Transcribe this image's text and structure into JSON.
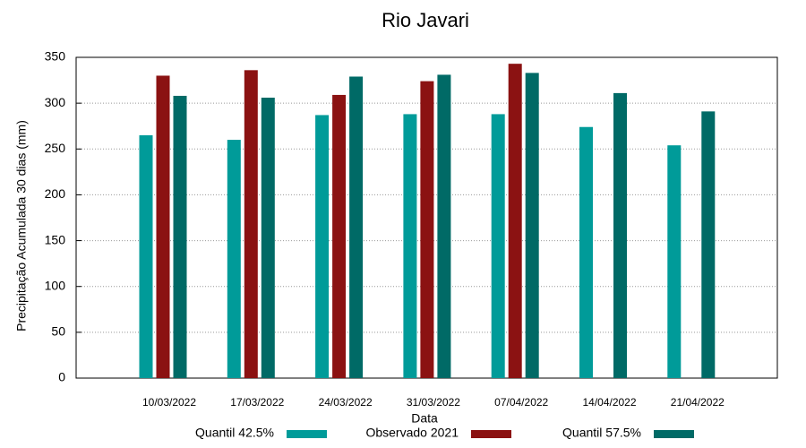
{
  "chart_data": {
    "type": "bar",
    "title": "Rio Javari",
    "x_label": "Data",
    "y_label": "Precipitação Acumulada 30 dias (mm)",
    "categories": [
      "10/03/2022",
      "17/03/2022",
      "24/03/2022",
      "31/03/2022",
      "07/04/2022",
      "14/04/2022",
      "21/04/2022"
    ],
    "series": [
      {
        "name": "Quantil 42.5%",
        "color": "#009b99",
        "values": [
          265,
          260,
          287,
          288,
          288,
          274,
          254
        ]
      },
      {
        "name": "Observado 2021",
        "color": "#8b1212",
        "values": [
          330,
          336,
          309,
          324,
          343,
          null,
          null
        ]
      },
      {
        "name": "Quantil 57.5%",
        "color": "#006a66",
        "values": [
          308,
          306,
          329,
          331,
          333,
          311,
          291
        ]
      }
    ],
    "ylim": [
      0,
      350
    ],
    "yticks": [
      0,
      50,
      100,
      150,
      200,
      250,
      300,
      350
    ],
    "grid": true,
    "legend": "bottom"
  }
}
